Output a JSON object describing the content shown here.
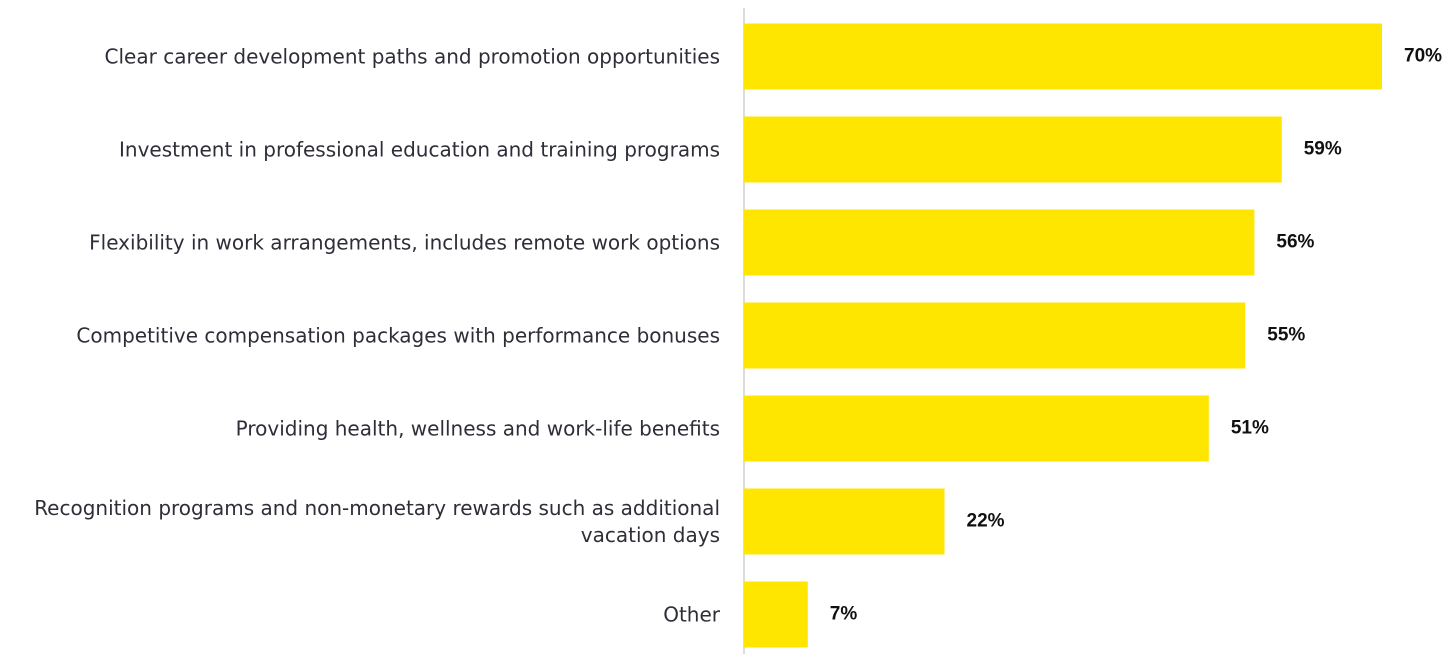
{
  "chart_data": {
    "type": "bar",
    "orientation": "horizontal",
    "categories": [
      "Clear career development paths and promotion opportunities",
      "Investment in professional education and training programs",
      "Flexibility in work arrangements, includes remote work options",
      "Competitive compensation packages with performance bonuses",
      "Providing health, wellness and work-life benefits",
      "Recognition programs and non-monetary rewards such as additional vacation days",
      "Other"
    ],
    "values": [
      70,
      59,
      56,
      55,
      51,
      22,
      7
    ],
    "value_labels": [
      "70%",
      "59%",
      "56%",
      "55%",
      "51%",
      "22%",
      "7%"
    ],
    "color": "#ffe600"
  }
}
